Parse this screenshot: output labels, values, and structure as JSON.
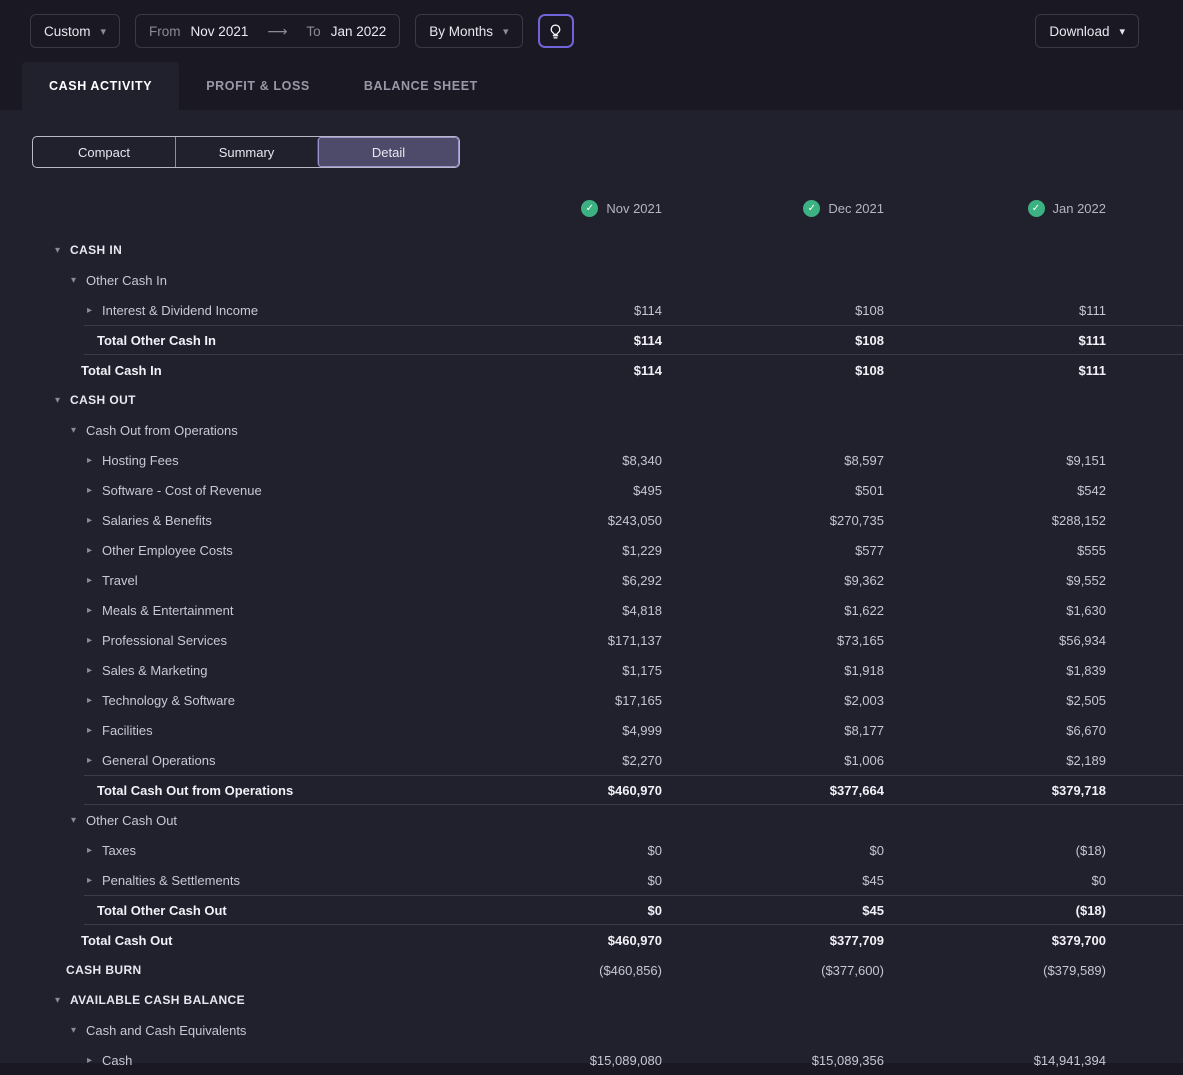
{
  "toolbar": {
    "preset": {
      "label": "Custom"
    },
    "date_range": {
      "from_label": "From",
      "from_value": "Nov 2021",
      "to_label": "To",
      "to_value": "Jan 2022"
    },
    "granularity": {
      "label": "By Months"
    },
    "download": {
      "label": "Download"
    }
  },
  "tabs": [
    {
      "label": "CASH ACTIVITY",
      "active": true
    },
    {
      "label": "PROFIT & LOSS",
      "active": false
    },
    {
      "label": "BALANCE SHEET",
      "active": false
    }
  ],
  "view_toggle": [
    {
      "label": "Compact",
      "active": false
    },
    {
      "label": "Summary",
      "active": false
    },
    {
      "label": "Detail",
      "active": true
    }
  ],
  "table": {
    "columns": [
      {
        "label": "Nov 2021"
      },
      {
        "label": "Dec 2021"
      },
      {
        "label": "Jan 2022"
      }
    ],
    "rows": [
      {
        "label": "CASH IN",
        "style": "section",
        "arrow": "down",
        "indent": 0,
        "values": [
          "",
          "",
          ""
        ]
      },
      {
        "label": "Other Cash In",
        "style": "parent",
        "arrow": "down",
        "indent": 1,
        "values": [
          "",
          "",
          ""
        ]
      },
      {
        "label": "Interest & Dividend Income",
        "style": "leaf",
        "arrow": "right",
        "indent": 2,
        "values": [
          "$114",
          "$108",
          "$111"
        ]
      },
      {
        "label": "Total Other Cash In",
        "style": "subtotal",
        "arrow": "none",
        "indent": 2,
        "values": [
          "$114",
          "$108",
          "$111"
        ]
      },
      {
        "label": "Total Cash In",
        "style": "total",
        "arrow": "none",
        "indent": 1,
        "values": [
          "$114",
          "$108",
          "$111"
        ]
      },
      {
        "label": "CASH OUT",
        "style": "section",
        "arrow": "down",
        "indent": 0,
        "values": [
          "",
          "",
          ""
        ]
      },
      {
        "label": "Cash Out from Operations",
        "style": "parent",
        "arrow": "down",
        "indent": 1,
        "values": [
          "",
          "",
          ""
        ]
      },
      {
        "label": "Hosting Fees",
        "style": "leaf",
        "arrow": "right",
        "indent": 2,
        "values": [
          "$8,340",
          "$8,597",
          "$9,151"
        ]
      },
      {
        "label": "Software - Cost of Revenue",
        "style": "leaf",
        "arrow": "right",
        "indent": 2,
        "values": [
          "$495",
          "$501",
          "$542"
        ]
      },
      {
        "label": "Salaries & Benefits",
        "style": "leaf",
        "arrow": "right",
        "indent": 2,
        "values": [
          "$243,050",
          "$270,735",
          "$288,152"
        ]
      },
      {
        "label": "Other Employee Costs",
        "style": "leaf",
        "arrow": "right",
        "indent": 2,
        "values": [
          "$1,229",
          "$577",
          "$555"
        ]
      },
      {
        "label": "Travel",
        "style": "leaf",
        "arrow": "right",
        "indent": 2,
        "values": [
          "$6,292",
          "$9,362",
          "$9,552"
        ]
      },
      {
        "label": "Meals & Entertainment",
        "style": "leaf",
        "arrow": "right",
        "indent": 2,
        "values": [
          "$4,818",
          "$1,622",
          "$1,630"
        ]
      },
      {
        "label": "Professional Services",
        "style": "leaf",
        "arrow": "right",
        "indent": 2,
        "values": [
          "$171,137",
          "$73,165",
          "$56,934"
        ]
      },
      {
        "label": "Sales & Marketing",
        "style": "leaf",
        "arrow": "right",
        "indent": 2,
        "values": [
          "$1,175",
          "$1,918",
          "$1,839"
        ]
      },
      {
        "label": "Technology & Software",
        "style": "leaf",
        "arrow": "right",
        "indent": 2,
        "values": [
          "$17,165",
          "$2,003",
          "$2,505"
        ]
      },
      {
        "label": "Facilities",
        "style": "leaf",
        "arrow": "right",
        "indent": 2,
        "values": [
          "$4,999",
          "$8,177",
          "$6,670"
        ]
      },
      {
        "label": "General Operations",
        "style": "leaf",
        "arrow": "right",
        "indent": 2,
        "values": [
          "$2,270",
          "$1,006",
          "$2,189"
        ]
      },
      {
        "label": "Total Cash Out from Operations",
        "style": "subtotal",
        "arrow": "none",
        "indent": 2,
        "values": [
          "$460,970",
          "$377,664",
          "$379,718"
        ]
      },
      {
        "label": "Other Cash Out",
        "style": "parent",
        "arrow": "down",
        "indent": 1,
        "values": [
          "",
          "",
          ""
        ]
      },
      {
        "label": "Taxes",
        "style": "leaf",
        "arrow": "right",
        "indent": 2,
        "values": [
          "$0",
          "$0",
          "($18)"
        ]
      },
      {
        "label": "Penalties & Settlements",
        "style": "leaf",
        "arrow": "right",
        "indent": 2,
        "values": [
          "$0",
          "$45",
          "$0"
        ]
      },
      {
        "label": "Total Other Cash Out",
        "style": "subtotal",
        "arrow": "none",
        "indent": 2,
        "values": [
          "$0",
          "$45",
          "($18)"
        ]
      },
      {
        "label": "Total Cash Out",
        "style": "total",
        "arrow": "none",
        "indent": 1,
        "values": [
          "$460,970",
          "$377,709",
          "$379,700"
        ]
      },
      {
        "label": "CASH BURN",
        "style": "burn",
        "arrow": "none",
        "indent": 0,
        "values": [
          "($460,856)",
          "($377,600)",
          "($379,589)"
        ]
      },
      {
        "label": "AVAILABLE CASH BALANCE",
        "style": "section",
        "arrow": "down",
        "indent": 0,
        "values": [
          "",
          "",
          ""
        ]
      },
      {
        "label": "Cash and Cash Equivalents",
        "style": "parent",
        "arrow": "down",
        "indent": 1,
        "values": [
          "",
          "",
          ""
        ]
      },
      {
        "label": "Cash",
        "style": "leaf",
        "arrow": "right",
        "indent": 2,
        "values": [
          "$15,089,080",
          "$15,089,356",
          "$14,941,394"
        ]
      }
    ]
  },
  "colors": {
    "accent_purple": "#7163d8",
    "check_green": "#3cb181",
    "content_bg": "#21202d",
    "page_bg": "#1a1923"
  }
}
